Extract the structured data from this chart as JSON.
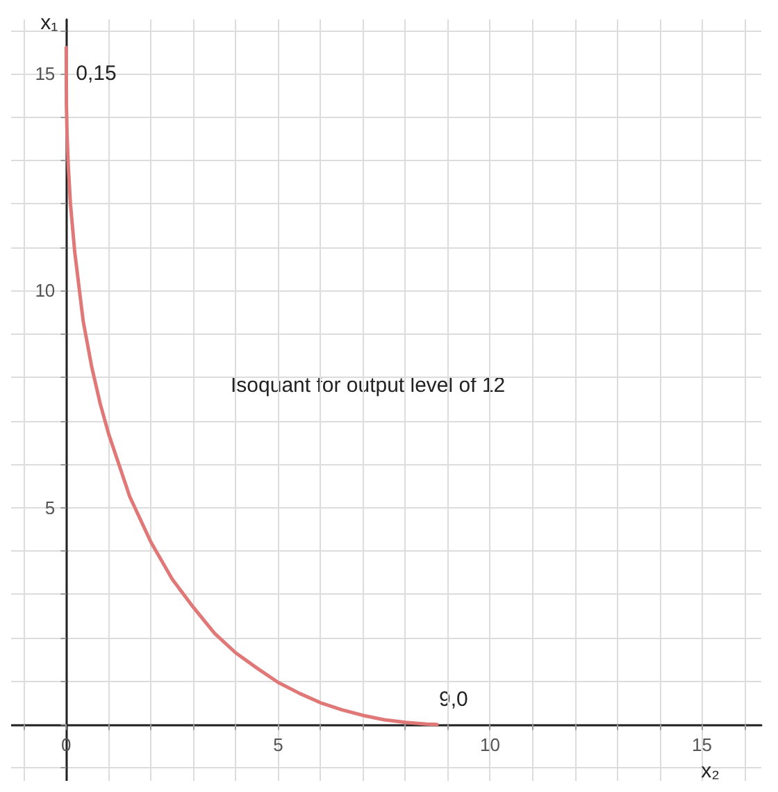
{
  "chart_data": {
    "type": "line",
    "xlabel": "x₂",
    "ylabel": "x₁",
    "xlim": [
      -1.3,
      16.4
    ],
    "ylim": [
      -1.3,
      16.25
    ],
    "xticks": [
      {
        "value": -1,
        "label": null
      },
      0,
      {
        "value": 1,
        "label": null
      },
      {
        "value": 2,
        "label": null
      },
      {
        "value": 3,
        "label": null
      },
      {
        "value": 4,
        "label": null
      },
      5,
      {
        "value": 6,
        "label": null
      },
      {
        "value": 7,
        "label": null
      },
      {
        "value": 8,
        "label": null
      },
      {
        "value": 9,
        "label": null
      },
      10,
      {
        "value": 11,
        "label": null
      },
      {
        "value": 12,
        "label": null
      },
      {
        "value": 13,
        "label": null
      },
      {
        "value": 14,
        "label": null
      },
      15,
      {
        "value": 16,
        "label": null
      }
    ],
    "yticks": [
      {
        "value": -1,
        "label": null
      },
      {
        "value": 0,
        "label": null
      },
      {
        "value": 1,
        "label": null
      },
      {
        "value": 2,
        "label": null
      },
      {
        "value": 3,
        "label": null
      },
      {
        "value": 4,
        "label": null
      },
      5,
      {
        "value": 6,
        "label": null
      },
      {
        "value": 7,
        "label": null
      },
      {
        "value": 8,
        "label": null
      },
      {
        "value": 9,
        "label": null
      },
      10,
      {
        "value": 11,
        "label": null
      },
      {
        "value": 12,
        "label": null
      },
      {
        "value": 13,
        "label": null
      },
      {
        "value": 14,
        "label": null
      },
      15,
      {
        "value": 16,
        "label": null
      }
    ],
    "grid": true,
    "series": [
      {
        "color": "#e07878",
        "x": [
          0,
          0.005,
          0.02,
          0.05,
          0.1,
          0.2,
          0.4,
          0.6,
          0.8,
          1,
          1.5,
          2,
          2.5,
          3,
          3.5,
          4,
          4.5,
          5,
          5.5,
          6,
          6.5,
          7,
          7.5,
          8,
          8.5,
          8.75
        ],
        "values": [
          15.6,
          14.3,
          13.6,
          12.85,
          12.0,
          10.9,
          9.3,
          8.25,
          7.4,
          6.7,
          5.25,
          4.2,
          3.35,
          2.7,
          2.1,
          1.65,
          1.3,
          0.97,
          0.72,
          0.5,
          0.34,
          0.21,
          0.11,
          0.05,
          0.01,
          0
        ]
      }
    ],
    "annotations": [
      {
        "text": "0,15",
        "x": 0,
        "y": 15
      },
      "9,0",
      "Isoquant for output level of 12"
    ]
  }
}
